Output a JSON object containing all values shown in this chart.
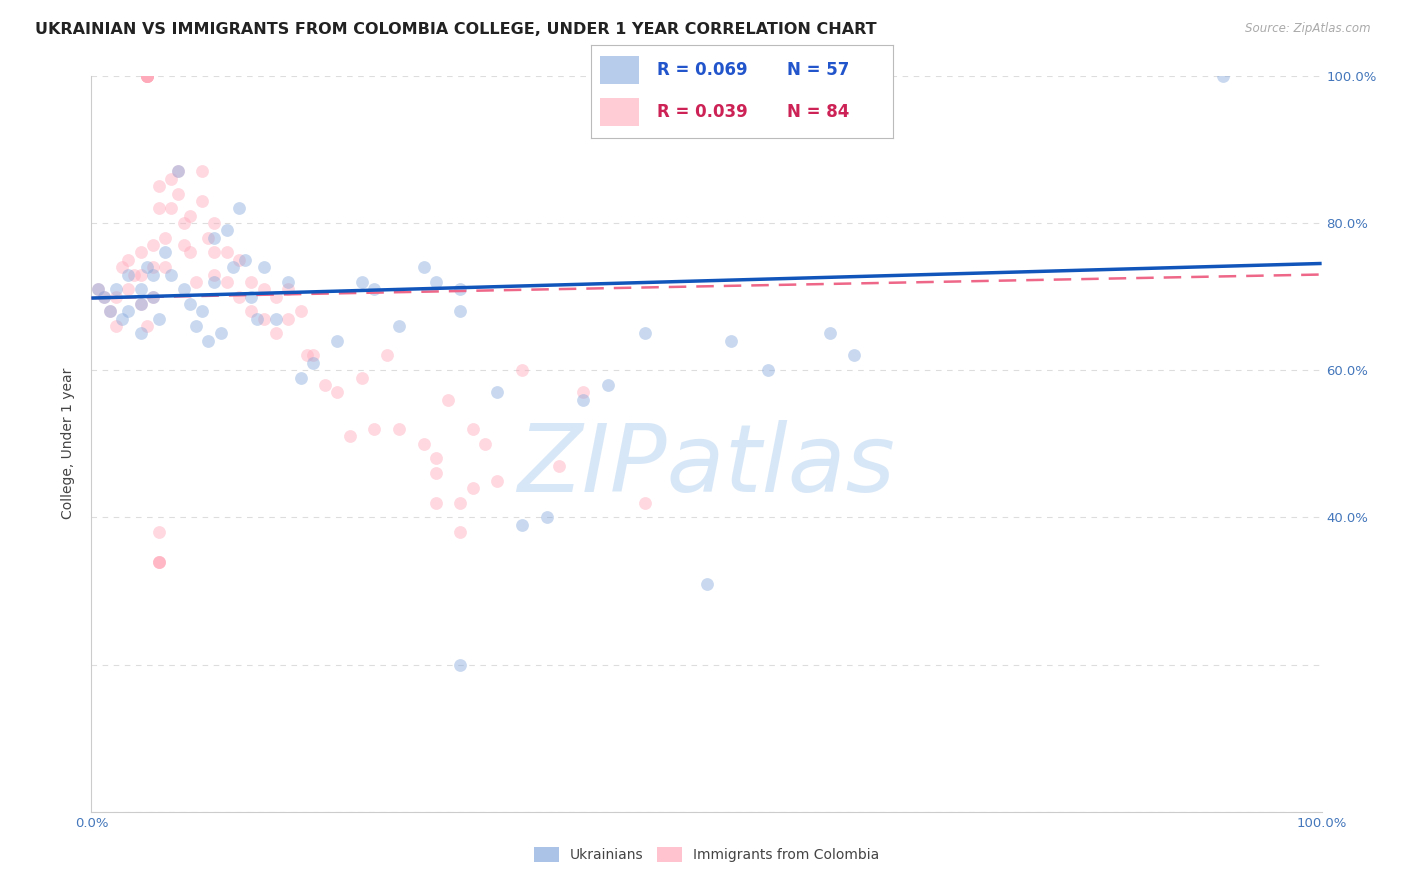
{
  "title": "UKRAINIAN VS IMMIGRANTS FROM COLOMBIA COLLEGE, UNDER 1 YEAR CORRELATION CHART",
  "source": "Source: ZipAtlas.com",
  "ylabel": "College, Under 1 year",
  "blue_color": "#88aadd",
  "pink_color": "#ffaabb",
  "blue_line_color": "#1155bb",
  "pink_line_color": "#ee6688",
  "legend_blue_R": "R = 0.069",
  "legend_blue_N": "N = 57",
  "legend_pink_R": "R = 0.039",
  "legend_pink_N": "N = 84",
  "blue_scatter_x": [
    0.005,
    0.01,
    0.015,
    0.02,
    0.025,
    0.03,
    0.03,
    0.04,
    0.04,
    0.04,
    0.045,
    0.05,
    0.05,
    0.055,
    0.06,
    0.065,
    0.07,
    0.075,
    0.08,
    0.085,
    0.09,
    0.095,
    0.1,
    0.1,
    0.105,
    0.11,
    0.115,
    0.12,
    0.125,
    0.13,
    0.135,
    0.14,
    0.15,
    0.16,
    0.17,
    0.18,
    0.2,
    0.22,
    0.23,
    0.25,
    0.27,
    0.28,
    0.3,
    0.3,
    0.33,
    0.35,
    0.37,
    0.4,
    0.42,
    0.45,
    0.5,
    0.52,
    0.55,
    0.6,
    0.62,
    0.92,
    0.3
  ],
  "blue_scatter_y": [
    0.71,
    0.7,
    0.68,
    0.71,
    0.67,
    0.73,
    0.68,
    0.71,
    0.69,
    0.65,
    0.74,
    0.73,
    0.7,
    0.67,
    0.76,
    0.73,
    0.87,
    0.71,
    0.69,
    0.66,
    0.68,
    0.64,
    0.78,
    0.72,
    0.65,
    0.79,
    0.74,
    0.82,
    0.75,
    0.7,
    0.67,
    0.74,
    0.67,
    0.72,
    0.59,
    0.61,
    0.64,
    0.72,
    0.71,
    0.66,
    0.74,
    0.72,
    0.68,
    0.71,
    0.57,
    0.39,
    0.4,
    0.56,
    0.58,
    0.65,
    0.31,
    0.64,
    0.6,
    0.65,
    0.62,
    1.0,
    0.2
  ],
  "pink_scatter_x": [
    0.005,
    0.01,
    0.015,
    0.02,
    0.02,
    0.025,
    0.03,
    0.03,
    0.035,
    0.04,
    0.04,
    0.04,
    0.045,
    0.05,
    0.05,
    0.05,
    0.055,
    0.055,
    0.06,
    0.06,
    0.065,
    0.065,
    0.07,
    0.07,
    0.075,
    0.075,
    0.08,
    0.08,
    0.085,
    0.09,
    0.09,
    0.095,
    0.1,
    0.1,
    0.1,
    0.11,
    0.11,
    0.12,
    0.12,
    0.13,
    0.13,
    0.14,
    0.14,
    0.15,
    0.15,
    0.16,
    0.16,
    0.17,
    0.175,
    0.18,
    0.19,
    0.2,
    0.21,
    0.22,
    0.23,
    0.24,
    0.25,
    0.27,
    0.28,
    0.29,
    0.31,
    0.32,
    0.33,
    0.35,
    0.38,
    0.4,
    0.045,
    0.045,
    0.045,
    0.045,
    0.045,
    0.045,
    0.045,
    0.045,
    0.28,
    0.28,
    0.31,
    0.055,
    0.055,
    0.055,
    0.055,
    0.3,
    0.3,
    0.45
  ],
  "pink_scatter_y": [
    0.71,
    0.7,
    0.68,
    0.7,
    0.66,
    0.74,
    0.75,
    0.71,
    0.73,
    0.76,
    0.73,
    0.69,
    0.66,
    0.77,
    0.74,
    0.7,
    0.85,
    0.82,
    0.78,
    0.74,
    0.86,
    0.82,
    0.87,
    0.84,
    0.8,
    0.77,
    0.81,
    0.76,
    0.72,
    0.87,
    0.83,
    0.78,
    0.8,
    0.76,
    0.73,
    0.76,
    0.72,
    0.75,
    0.7,
    0.72,
    0.68,
    0.71,
    0.67,
    0.7,
    0.65,
    0.71,
    0.67,
    0.68,
    0.62,
    0.62,
    0.58,
    0.57,
    0.51,
    0.59,
    0.52,
    0.62,
    0.52,
    0.5,
    0.48,
    0.56,
    0.52,
    0.5,
    0.45,
    0.6,
    0.47,
    0.57,
    1.0,
    1.0,
    1.0,
    1.0,
    1.0,
    1.0,
    1.0,
    1.0,
    0.46,
    0.42,
    0.44,
    0.38,
    0.34,
    0.34,
    0.34,
    0.42,
    0.38,
    0.42
  ],
  "blue_line_start_y": 0.698,
  "blue_line_end_y": 0.745,
  "pink_line_start_y": 0.698,
  "pink_line_end_y": 0.73,
  "title_fontsize": 11.5,
  "tick_fontsize": 9.5,
  "marker_size": 85,
  "marker_alpha": 0.45,
  "line_width": 2.5,
  "tick_color": "#4477bb",
  "title_color": "#222222",
  "ylabel_color": "#444444",
  "grid_color": "#dddddd",
  "background_color": "#ffffff",
  "watermark_color": "#cce0f5",
  "watermark_text": "ZIPatlas",
  "right_yticks": [
    0.4,
    0.6,
    0.8,
    1.0
  ],
  "right_ytick_labels": [
    "40.0%",
    "60.0%",
    "80.0%",
    "100.0%"
  ],
  "xlim": [
    0.0,
    1.0
  ],
  "ylim": [
    0.0,
    1.0
  ]
}
